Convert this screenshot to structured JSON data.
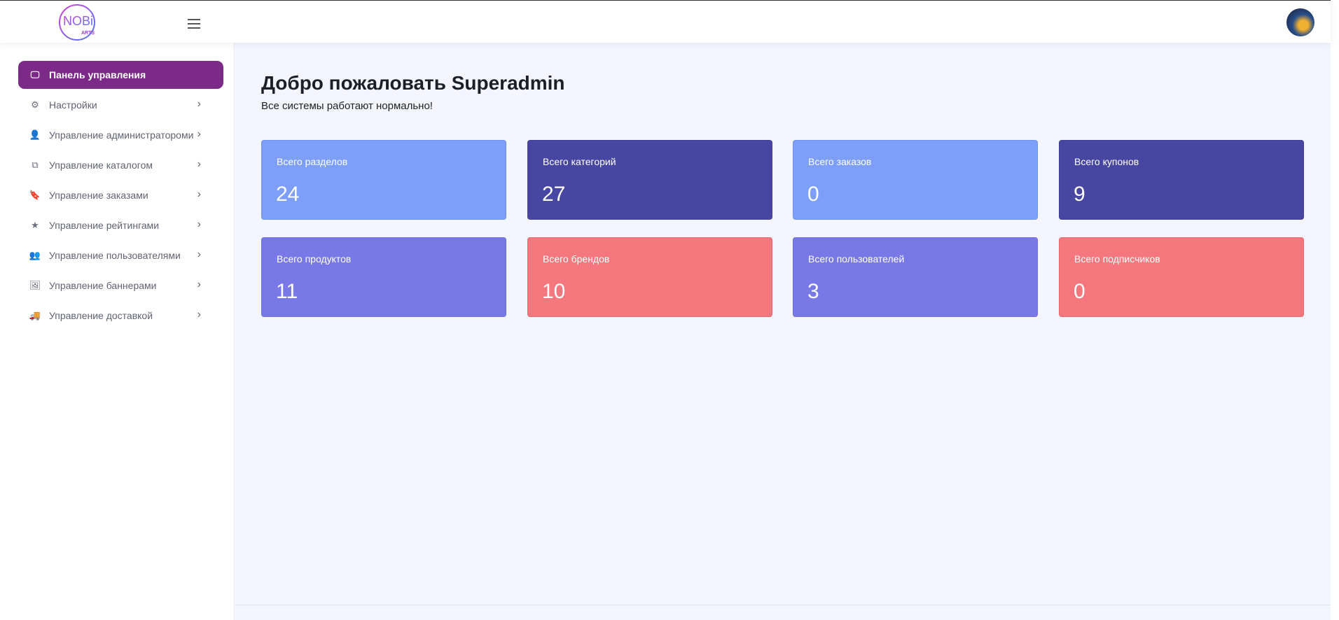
{
  "header": {
    "logo_text": "NOBI ARTS",
    "menu_icon": "hamburger-icon",
    "avatar": "user-avatar"
  },
  "sidebar": {
    "items": [
      {
        "label": "Панель управления",
        "icon": "monitor-icon",
        "active": true
      },
      {
        "label": "Настройки",
        "icon": "gears-icon"
      },
      {
        "label": "Управление администратороми",
        "icon": "user-icon"
      },
      {
        "label": "Управление каталогом",
        "icon": "copy-icon"
      },
      {
        "label": "Управление заказами",
        "icon": "bookmark-icon"
      },
      {
        "label": "Управление рейтингами",
        "icon": "star-icon"
      },
      {
        "label": "Управление пользователями",
        "icon": "users-icon"
      },
      {
        "label": "Управление баннерами",
        "icon": "image-icon"
      },
      {
        "label": "Управление доставкой",
        "icon": "truck-icon"
      }
    ]
  },
  "main": {
    "title": "Добро пожаловать Superadmin",
    "subtitle": "Все системы работают нормально!",
    "cards": [
      {
        "label": "Всего разделов",
        "value": "24",
        "color": "#7d9ff9"
      },
      {
        "label": "Всего категорий",
        "value": "27",
        "color": "#4746a0"
      },
      {
        "label": "Всего заказов",
        "value": "0",
        "color": "#7d9ff9"
      },
      {
        "label": "Всего купонов",
        "value": "9",
        "color": "#4746a0"
      },
      {
        "label": "Всего продуктов",
        "value": "11",
        "color": "#7878e6"
      },
      {
        "label": "Всего брендов",
        "value": "10",
        "color": "#f3777c"
      },
      {
        "label": "Всего пользователей",
        "value": "3",
        "color": "#7878e6"
      },
      {
        "label": "Всего подписчиков",
        "value": "0",
        "color": "#f3777c"
      }
    ]
  }
}
